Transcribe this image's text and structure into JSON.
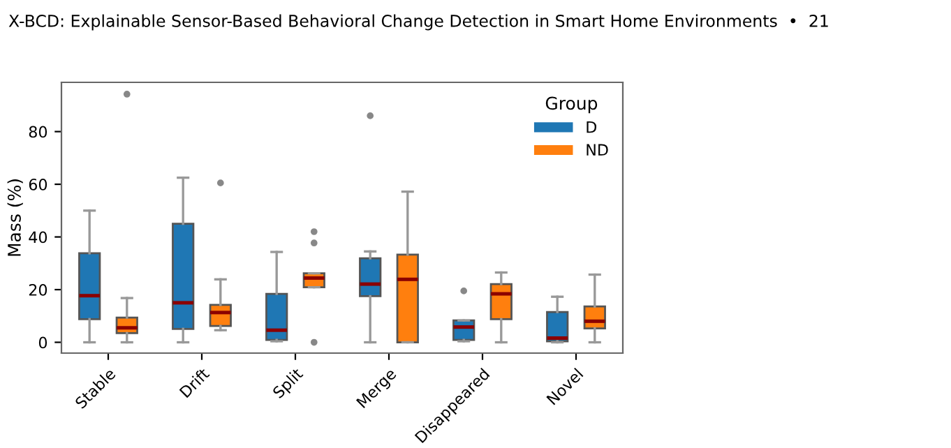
{
  "chart_data": {
    "type": "box",
    "ylabel": "Mass (%)",
    "legend_title": "Group",
    "legend": "top right",
    "grid": false,
    "annotations": [
      "X-BCD: Explainable Sensor-Based Behavioral Change Detection in Smart Home Environments  •  21"
    ],
    "categories": [
      "Stable",
      "Drift",
      "Split",
      "Merge",
      "Disappeared",
      "Novel"
    ],
    "ylim": [
      -4.1,
      98.7
    ],
    "yticks": [
      0,
      20,
      40,
      60,
      80
    ],
    "series": [
      {
        "name": "D",
        "color": "#1f77b4",
        "boxes": [
          {
            "low": 0,
            "q1": 8.8,
            "median": 17.7,
            "q3": 33.8,
            "high": 50
          },
          {
            "low": 0,
            "q1": 5.1,
            "median": 15,
            "q3": 45,
            "high": 62.5
          },
          {
            "low": 0.4,
            "q1": 0.9,
            "median": 4.6,
            "q3": 18.4,
            "high": 34.3
          },
          {
            "low": 0,
            "q1": 17.5,
            "median": 22.1,
            "q3": 31.9,
            "high": 34.5,
            "outliers": [
              86
            ]
          },
          {
            "low": 0.4,
            "q1": 0.9,
            "median": 5.8,
            "q3": 8.3,
            "high": 8.3,
            "outliers": [
              19.5
            ]
          },
          {
            "low": 0,
            "q1": 0.4,
            "median": 1.6,
            "q3": 11.5,
            "high": 17.3
          }
        ]
      },
      {
        "name": "ND",
        "color": "#ff7f0e",
        "boxes": [
          {
            "low": 0,
            "q1": 3.5,
            "median": 5.5,
            "q3": 9.4,
            "high": 16.8,
            "outliers": [
              94.2
            ]
          },
          {
            "low": 4.6,
            "q1": 6.2,
            "median": 11.3,
            "q3": 14.2,
            "high": 23.9,
            "outliers": [
              60.5
            ]
          },
          {
            "low": 20.9,
            "q1": 20.9,
            "median": 24.4,
            "q3": 26.2,
            "high": 26.2,
            "outliers": [
              42,
              37.7,
              0
            ]
          },
          {
            "low": 0,
            "q1": 0,
            "median": 23.9,
            "q3": 33.3,
            "high": 57.2
          },
          {
            "low": 0,
            "q1": 8.8,
            "median": 18.4,
            "q3": 22.1,
            "high": 26.5
          },
          {
            "low": 0,
            "q1": 5.3,
            "median": 8,
            "q3": 13.6,
            "high": 25.7
          }
        ]
      }
    ]
  }
}
